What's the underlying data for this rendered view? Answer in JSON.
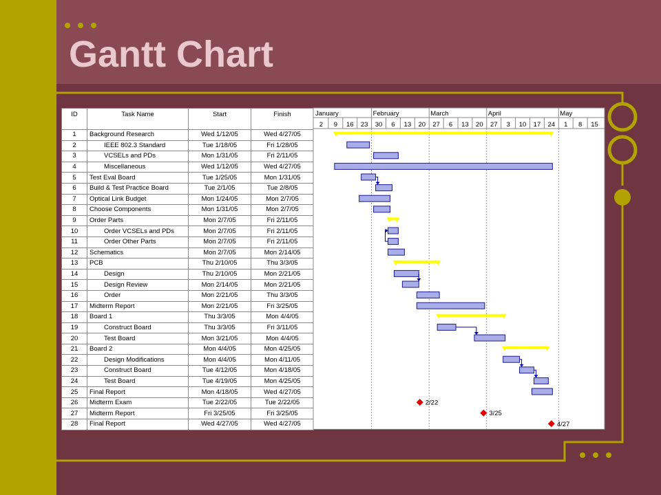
{
  "slide": {
    "title": "Gantt Chart"
  },
  "colors": {
    "background": "#6f3540",
    "top_band": "#8a4a53",
    "olive": "#b3a300",
    "title_text": "#e9c9cb",
    "bar_fill": "#a9aee8",
    "bar_border": "#1a1a8c",
    "summary": "#ffff00",
    "milestone": "#e00000",
    "link": "#0000c0"
  },
  "table": {
    "headers": {
      "id": "ID",
      "name": "Task Name",
      "start": "Start",
      "finish": "Finish"
    }
  },
  "timeline": {
    "months": [
      "January",
      "February",
      "March",
      "April",
      "May"
    ],
    "week_labels": [
      "2",
      "9",
      "16",
      "23",
      "30",
      "6",
      "13",
      "20",
      "27",
      "6",
      "13",
      "20",
      "27",
      "3",
      "10",
      "17",
      "24",
      "1",
      "8",
      "15"
    ],
    "week_starts": [
      "2005-01-02",
      "2005-01-09",
      "2005-01-16",
      "2005-01-23",
      "2005-01-30",
      "2005-02-06",
      "2005-02-13",
      "2005-02-20",
      "2005-02-27",
      "2005-03-06",
      "2005-03-13",
      "2005-03-20",
      "2005-03-27",
      "2005-04-03",
      "2005-04-10",
      "2005-04-17",
      "2005-04-24",
      "2005-05-01",
      "2005-05-08",
      "2005-05-15"
    ]
  },
  "chart_data": {
    "type": "table",
    "tasks": [
      {
        "id": "1",
        "name": "Background Research",
        "start": "Wed 1/12/05",
        "finish": "Wed 4/27/05",
        "start_date": "2005-01-12",
        "finish_date": "2005-04-27",
        "kind": "summary",
        "indent": 0
      },
      {
        "id": "2",
        "name": "IEEE 802.3 Standard",
        "start": "Tue 1/18/05",
        "finish": "Fri 1/28/05",
        "start_date": "2005-01-18",
        "finish_date": "2005-01-28",
        "kind": "task",
        "indent": 1
      },
      {
        "id": "3",
        "name": "VCSELs and PDs",
        "start": "Mon 1/31/05",
        "finish": "Fri 2/11/05",
        "start_date": "2005-01-31",
        "finish_date": "2005-02-11",
        "kind": "task",
        "indent": 1
      },
      {
        "id": "4",
        "name": "Miscellaneous",
        "start": "Wed 1/12/05",
        "finish": "Wed 4/27/05",
        "start_date": "2005-01-12",
        "finish_date": "2005-04-27",
        "kind": "task",
        "indent": 1
      },
      {
        "id": "5",
        "name": "Test Eval Board",
        "start": "Tue 1/25/05",
        "finish": "Mon 1/31/05",
        "start_date": "2005-01-25",
        "finish_date": "2005-01-31",
        "kind": "task",
        "indent": 0
      },
      {
        "id": "6",
        "name": "Build & Test Practice Board",
        "start": "Tue 2/1/05",
        "finish": "Tue 2/8/05",
        "start_date": "2005-02-01",
        "finish_date": "2005-02-08",
        "kind": "task",
        "indent": 0
      },
      {
        "id": "7",
        "name": "Optical Link Budget",
        "start": "Mon 1/24/05",
        "finish": "Mon 2/7/05",
        "start_date": "2005-01-24",
        "finish_date": "2005-02-07",
        "kind": "task",
        "indent": 0
      },
      {
        "id": "8",
        "name": "Choose Components",
        "start": "Mon 1/31/05",
        "finish": "Mon 2/7/05",
        "start_date": "2005-01-31",
        "finish_date": "2005-02-07",
        "kind": "task",
        "indent": 0
      },
      {
        "id": "9",
        "name": "Order Parts",
        "start": "Mon 2/7/05",
        "finish": "Fri 2/11/05",
        "start_date": "2005-02-07",
        "finish_date": "2005-02-11",
        "kind": "summary",
        "indent": 0
      },
      {
        "id": "10",
        "name": "Order VCSELs and PDs",
        "start": "Mon 2/7/05",
        "finish": "Fri 2/11/05",
        "start_date": "2005-02-07",
        "finish_date": "2005-02-11",
        "kind": "task",
        "indent": 1
      },
      {
        "id": "11",
        "name": "Order Other Parts",
        "start": "Mon 2/7/05",
        "finish": "Fri 2/11/05",
        "start_date": "2005-02-07",
        "finish_date": "2005-02-11",
        "kind": "task",
        "indent": 1
      },
      {
        "id": "12",
        "name": "Schematics",
        "start": "Mon 2/7/05",
        "finish": "Mon 2/14/05",
        "start_date": "2005-02-07",
        "finish_date": "2005-02-14",
        "kind": "task",
        "indent": 0
      },
      {
        "id": "13",
        "name": "PCB",
        "start": "Thu 2/10/05",
        "finish": "Thu 3/3/05",
        "start_date": "2005-02-10",
        "finish_date": "2005-03-03",
        "kind": "summary",
        "indent": 0
      },
      {
        "id": "14",
        "name": "Design",
        "start": "Thu 2/10/05",
        "finish": "Mon 2/21/05",
        "start_date": "2005-02-10",
        "finish_date": "2005-02-21",
        "kind": "task",
        "indent": 1
      },
      {
        "id": "15",
        "name": "Design Review",
        "start": "Mon 2/14/05",
        "finish": "Mon 2/21/05",
        "start_date": "2005-02-14",
        "finish_date": "2005-02-21",
        "kind": "task",
        "indent": 1
      },
      {
        "id": "16",
        "name": "Order",
        "start": "Mon 2/21/05",
        "finish": "Thu 3/3/05",
        "start_date": "2005-02-21",
        "finish_date": "2005-03-03",
        "kind": "task",
        "indent": 1
      },
      {
        "id": "17",
        "name": "Midterm Report",
        "start": "Mon 2/21/05",
        "finish": "Fri 3/25/05",
        "start_date": "2005-02-21",
        "finish_date": "2005-03-25",
        "kind": "task",
        "indent": 0
      },
      {
        "id": "18",
        "name": "Board 1",
        "start": "Thu 3/3/05",
        "finish": "Mon 4/4/05",
        "start_date": "2005-03-03",
        "finish_date": "2005-04-04",
        "kind": "summary",
        "indent": 0
      },
      {
        "id": "19",
        "name": "Construct Board",
        "start": "Thu 3/3/05",
        "finish": "Fri 3/11/05",
        "start_date": "2005-03-03",
        "finish_date": "2005-03-11",
        "kind": "task",
        "indent": 1
      },
      {
        "id": "20",
        "name": "Test Board",
        "start": "Mon 3/21/05",
        "finish": "Mon 4/4/05",
        "start_date": "2005-03-21",
        "finish_date": "2005-04-04",
        "kind": "task",
        "indent": 1
      },
      {
        "id": "21",
        "name": "Board 2",
        "start": "Mon 4/4/05",
        "finish": "Mon 4/25/05",
        "start_date": "2005-04-04",
        "finish_date": "2005-04-25",
        "kind": "summary",
        "indent": 0
      },
      {
        "id": "22",
        "name": "Design Modifications",
        "start": "Mon 4/4/05",
        "finish": "Mon 4/11/05",
        "start_date": "2005-04-04",
        "finish_date": "2005-04-11",
        "kind": "task",
        "indent": 1
      },
      {
        "id": "23",
        "name": "Construct Board",
        "start": "Tue 4/12/05",
        "finish": "Mon 4/18/05",
        "start_date": "2005-04-12",
        "finish_date": "2005-04-18",
        "kind": "task",
        "indent": 1
      },
      {
        "id": "24",
        "name": "Test Board",
        "start": "Tue 4/19/05",
        "finish": "Mon 4/25/05",
        "start_date": "2005-04-19",
        "finish_date": "2005-04-25",
        "kind": "task",
        "indent": 1
      },
      {
        "id": "25",
        "name": "Final Report",
        "start": "Mon 4/18/05",
        "finish": "Wed 4/27/05",
        "start_date": "2005-04-18",
        "finish_date": "2005-04-27",
        "kind": "task",
        "indent": 0
      },
      {
        "id": "26",
        "name": "Midterm Exam",
        "start": "Tue 2/22/05",
        "finish": "Tue 2/22/05",
        "start_date": "2005-02-22",
        "finish_date": "2005-02-22",
        "kind": "milestone",
        "indent": 0,
        "label": "2/22"
      },
      {
        "id": "27",
        "name": "Midterm Report",
        "start": "Fri 3/25/05",
        "finish": "Fri 3/25/05",
        "start_date": "2005-03-25",
        "finish_date": "2005-03-25",
        "kind": "milestone",
        "indent": 0,
        "label": "3/25"
      },
      {
        "id": "28",
        "name": "Final Report",
        "start": "Wed 4/27/05",
        "finish": "Wed 4/27/05",
        "start_date": "2005-04-27",
        "finish_date": "2005-04-27",
        "kind": "milestone",
        "indent": 0,
        "label": "4/27"
      }
    ],
    "links": [
      {
        "from": "5",
        "to": "6"
      },
      {
        "from": "11",
        "to": "10"
      },
      {
        "from": "14",
        "to": "15"
      },
      {
        "from": "19",
        "to": "20"
      },
      {
        "from": "22",
        "to": "23"
      },
      {
        "from": "23",
        "to": "24"
      }
    ]
  }
}
